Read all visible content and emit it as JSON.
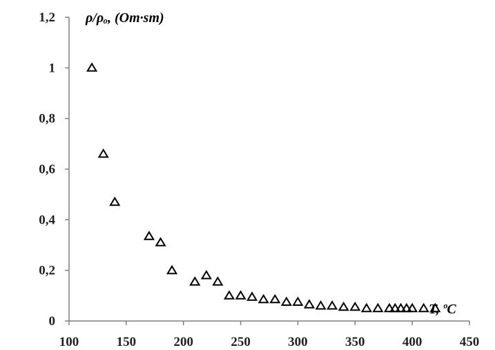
{
  "chart_data": {
    "type": "scatter",
    "title": "",
    "ylabel": "ρ/ρₒ, (Om·sm)",
    "xlabel": "T,  ºC",
    "xlim": [
      100,
      450
    ],
    "ylim": [
      0,
      1.2
    ],
    "x_ticks": [
      "100",
      "150",
      "200",
      "250",
      "300",
      "350",
      "400",
      "450"
    ],
    "y_ticks": [
      "0",
      "0,2",
      "0,4",
      "0,6",
      "0,8",
      "1",
      "1,2"
    ],
    "x_tick_values": [
      100,
      150,
      200,
      250,
      300,
      350,
      400,
      450
    ],
    "y_tick_values": [
      0,
      0.2,
      0.4,
      0.6,
      0.8,
      1,
      1.2
    ],
    "grid": false,
    "marker": "open-triangle",
    "marker_color": "#000000",
    "axis_color": "#7f7f7f",
    "series": [
      {
        "x": [
          120,
          130,
          140,
          170,
          180,
          190,
          210,
          220,
          230,
          240,
          250,
          260,
          270,
          280,
          290,
          300,
          310,
          320,
          330,
          340,
          350,
          360,
          370,
          380,
          385,
          390,
          395,
          400,
          410,
          420
        ],
        "y": [
          1.0,
          0.66,
          0.47,
          0.335,
          0.31,
          0.2,
          0.155,
          0.18,
          0.155,
          0.1,
          0.1,
          0.095,
          0.085,
          0.085,
          0.075,
          0.075,
          0.065,
          0.06,
          0.06,
          0.055,
          0.055,
          0.05,
          0.05,
          0.05,
          0.05,
          0.05,
          0.05,
          0.05,
          0.05,
          0.05
        ]
      }
    ]
  }
}
